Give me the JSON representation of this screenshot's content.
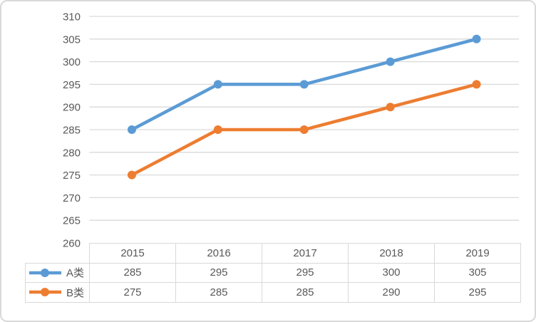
{
  "chart_data": {
    "type": "line",
    "title": "",
    "xlabel": "",
    "ylabel": "",
    "categories": [
      "2015",
      "2016",
      "2017",
      "2018",
      "2019"
    ],
    "series": [
      {
        "name": "A类",
        "values": [
          285,
          295,
          295,
          300,
          305
        ],
        "color": "#5B9BD5",
        "marker": "circle"
      },
      {
        "name": "B类",
        "values": [
          275,
          285,
          285,
          290,
          295
        ],
        "color": "#ED7D31",
        "marker": "circle"
      }
    ],
    "ylim": [
      260,
      310
    ],
    "ytick_step": 5,
    "yticks": [
      260,
      265,
      270,
      275,
      280,
      285,
      290,
      295,
      300,
      305,
      310
    ],
    "grid": true,
    "legend_position": "data-table-left"
  },
  "colors": {
    "gridline": "#D9D9D9",
    "axis_text": "#595959",
    "table_border": "#D9D9D9",
    "frame_border": "#D9D9D9",
    "background": "#FFFFFF",
    "series_a": "#5B9BD5",
    "series_b": "#ED7D31"
  }
}
